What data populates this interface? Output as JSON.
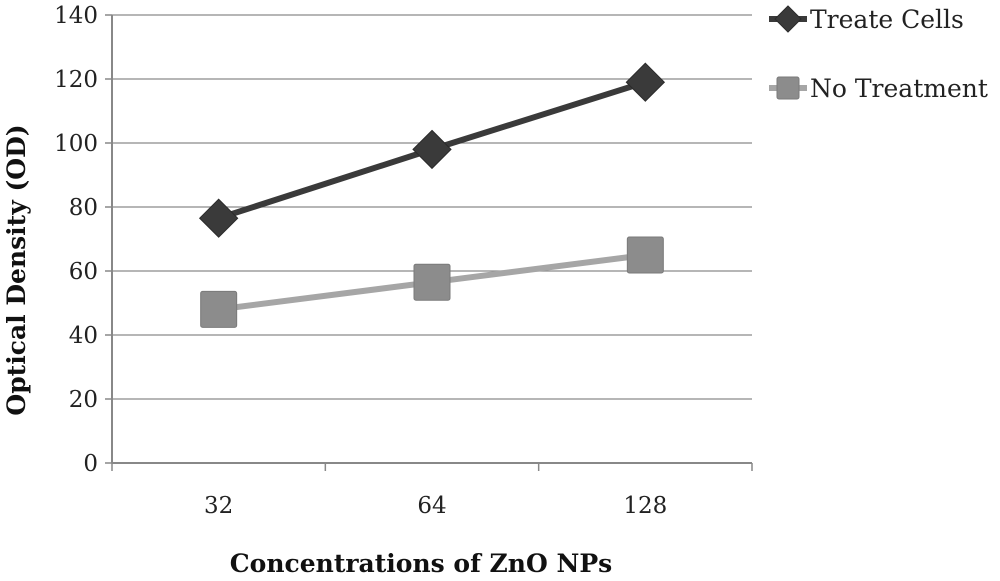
{
  "chart_data": {
    "type": "line",
    "categories": [
      "32",
      "64",
      "128"
    ],
    "xlabel": "Concentrations of ZnO NPs",
    "ylabel": "Optical Density (OD)",
    "ylim": [
      0,
      140
    ],
    "yticks": [
      "0",
      "20",
      "40",
      "60",
      "80",
      "100",
      "120",
      "140"
    ],
    "grid": true,
    "legend_position": "top-right",
    "series": [
      {
        "name": "Treate Cells",
        "values": [
          76.5,
          98,
          119
        ],
        "marker": "diamond",
        "color": "#3a3a3a"
      },
      {
        "name": "No Treatment",
        "values": [
          48,
          56.5,
          65
        ],
        "marker": "square",
        "color": "#a6a6a6",
        "marker_color": "#8c8c8c"
      }
    ]
  }
}
